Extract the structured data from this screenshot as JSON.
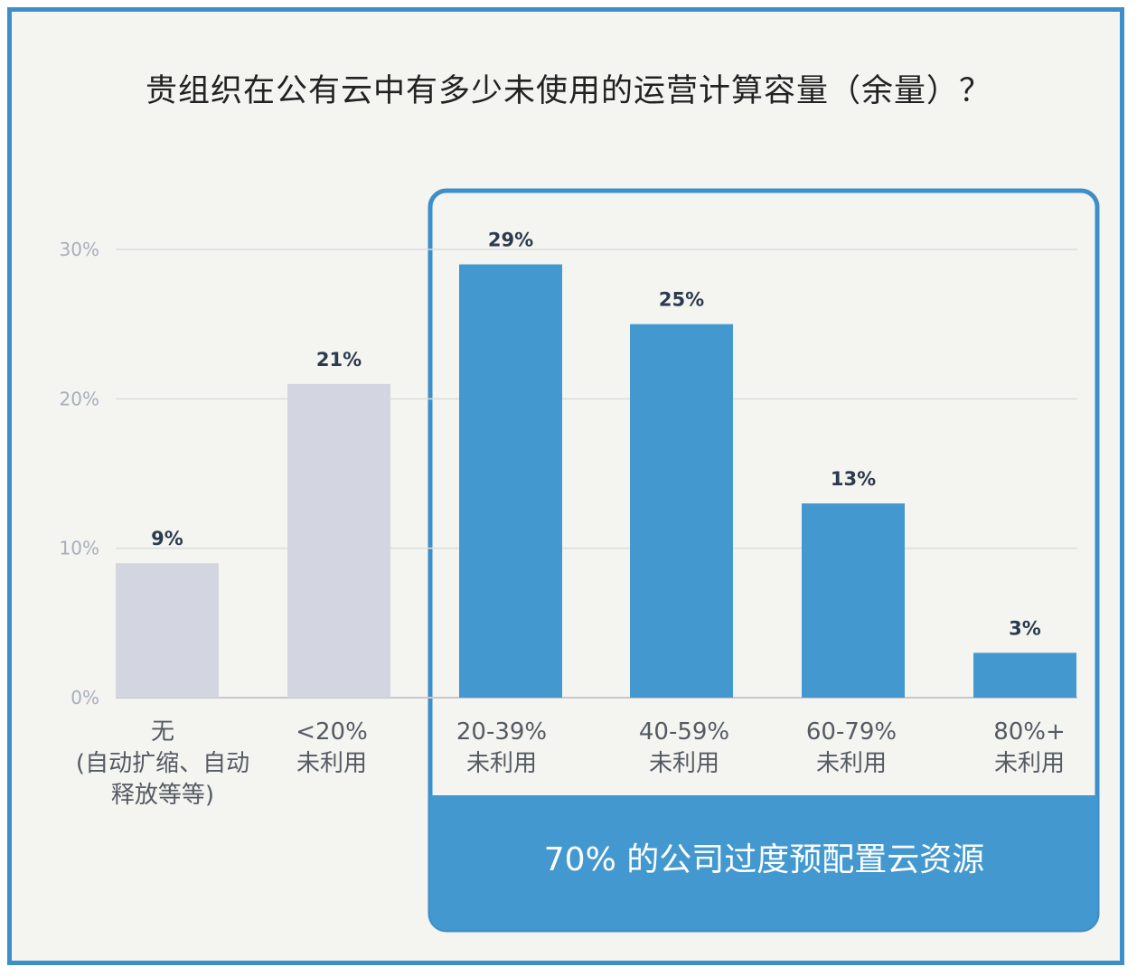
{
  "chart_data": {
    "type": "bar",
    "title": "贵组织在公有云中有多少未使用的运营计算容量（余量）？",
    "categories": [
      [
        "无",
        "(自动扩缩、自动",
        "释放等等)"
      ],
      [
        "<20%",
        "未利用"
      ],
      [
        "20-39%",
        "未利用"
      ],
      [
        "40-59%",
        "未利用"
      ],
      [
        "60-79%",
        "未利用"
      ],
      [
        "80%+",
        "未利用"
      ]
    ],
    "values": [
      9,
      21,
      29,
      25,
      13,
      3
    ],
    "value_labels": [
      "9%",
      "21%",
      "29%",
      "25%",
      "13%",
      "3%"
    ],
    "highlighted": [
      false,
      false,
      true,
      true,
      true,
      true
    ],
    "yticks": [
      "0%",
      "10%",
      "20%",
      "30%"
    ],
    "ylim": [
      0,
      30
    ],
    "grid": true,
    "colors": {
      "normal": "#d3d6e1",
      "highlight": "#4399cf",
      "frame": "#3d8fca",
      "grid": "#dcdcdc"
    },
    "callout": "70% 的公司过度预配置云资源"
  }
}
